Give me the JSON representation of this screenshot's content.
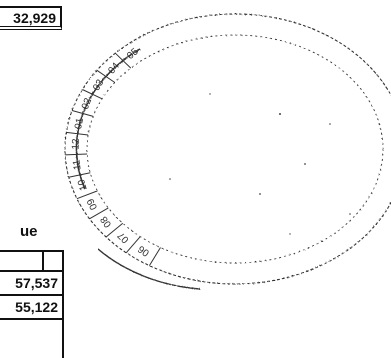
{
  "document": {
    "top_total": "32,929",
    "caption_fragment": "ue",
    "table": {
      "rows": [
        {
          "value": "57,537"
        },
        {
          "value": "55,122"
        }
      ]
    }
  },
  "stamp": {
    "type": "circular-date-stamp",
    "ring_labels": [
      "06",
      "07",
      "08",
      "09",
      "10",
      "11",
      "12",
      "01",
      "02",
      "03",
      "04",
      "05"
    ],
    "colors": {
      "ink": "#333333"
    }
  }
}
